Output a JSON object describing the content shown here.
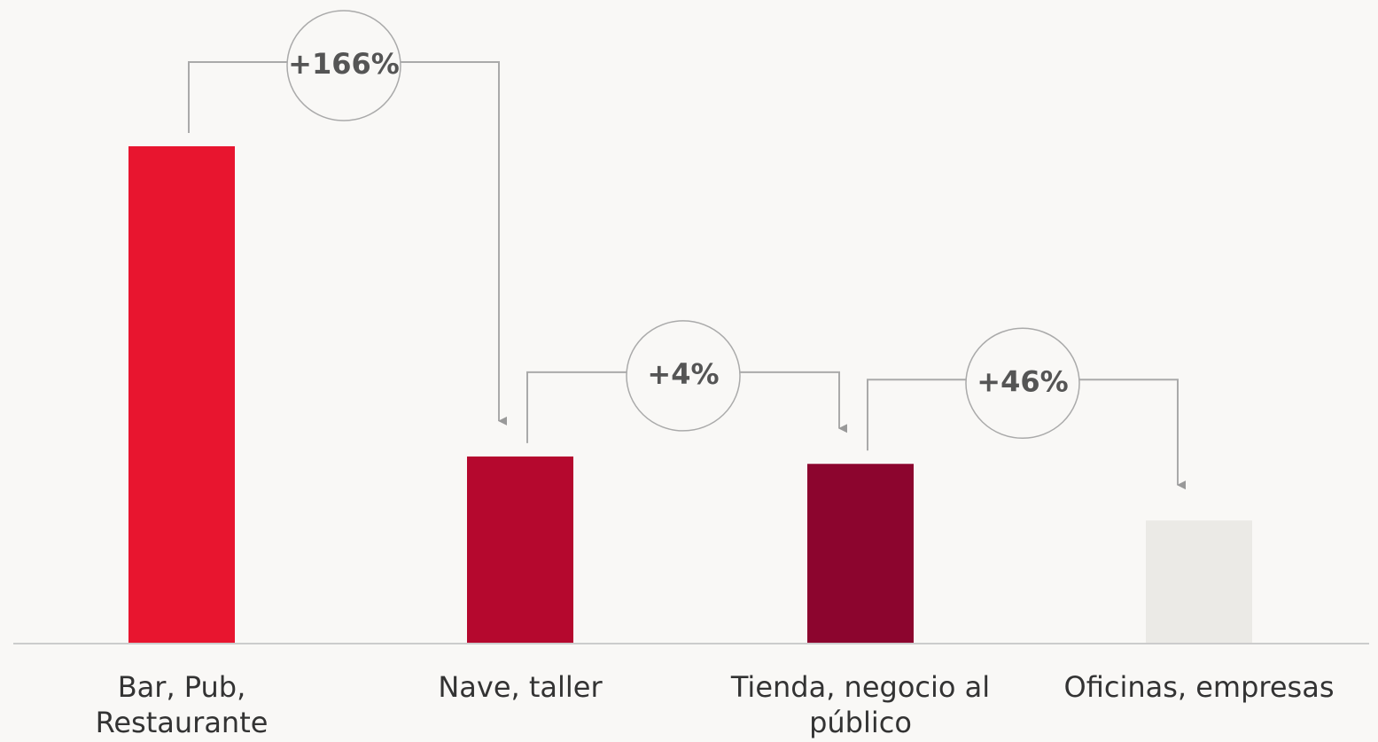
{
  "chart_data": {
    "type": "bar",
    "categories": [
      "Bar, Pub, Restaurante",
      "Nave, taller",
      "Tienda, negocio al público",
      "Oficinas, empresas"
    ],
    "values": [
      404,
      152,
      146,
      100
    ],
    "colors": [
      "#e8152f",
      "#b5082e",
      "#8c052e",
      "#ebeae6"
    ],
    "ylim": [
      0,
      404
    ],
    "annotations": [
      "+166%",
      "+4%",
      "+46%"
    ]
  }
}
